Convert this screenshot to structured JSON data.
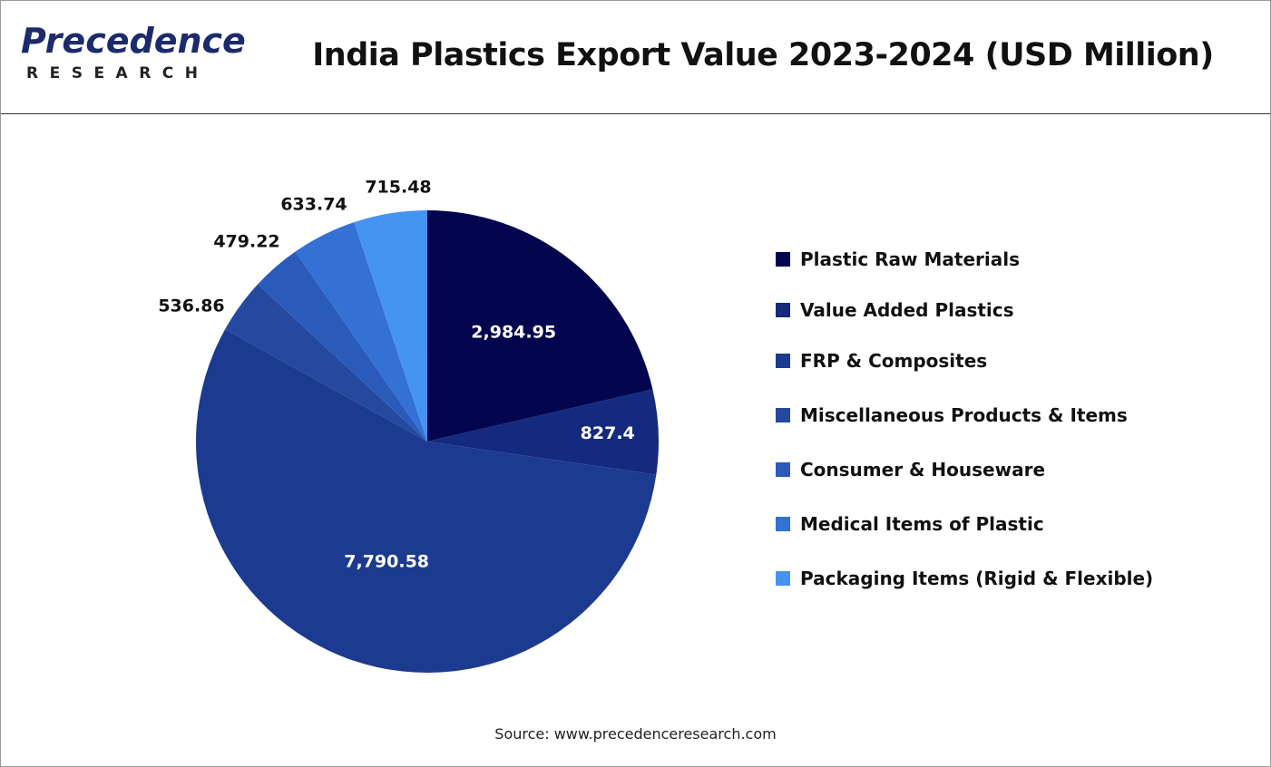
{
  "brand": {
    "name": "Precedence",
    "subname": "RESEARCH"
  },
  "source": "Source: www.precedenceresearch.com",
  "chart_data": {
    "type": "pie",
    "title": "India Plastics Export Value 2023-2024 (USD Million)",
    "legend_position": "right",
    "slices": [
      {
        "label": "Plastic Raw Materials",
        "value": 2984.95,
        "display": "2,984.95",
        "color": "#03064f",
        "label_inside": true
      },
      {
        "label": "Value Added Plastics",
        "value": 827.4,
        "display": "827.4",
        "color": "#142a7e",
        "label_inside": true
      },
      {
        "label": "FRP & Composites",
        "value": 7790.58,
        "display": "7,790.58",
        "color": "#1c3b90",
        "label_inside": true
      },
      {
        "label": "Miscellaneous Products & Items",
        "value": 536.86,
        "display": "536.86",
        "color": "#24499f",
        "label_inside": false
      },
      {
        "label": "Consumer & Houseware",
        "value": 479.22,
        "display": "479.22",
        "color": "#2b5bba",
        "label_inside": false
      },
      {
        "label": "Medical Items of Plastic",
        "value": 633.74,
        "display": "633.74",
        "color": "#3371d4",
        "label_inside": false
      },
      {
        "label": "Packaging Items (Rigid & Flexible)",
        "value": 715.48,
        "display": "715.48",
        "color": "#4593f0",
        "label_inside": false
      }
    ]
  }
}
